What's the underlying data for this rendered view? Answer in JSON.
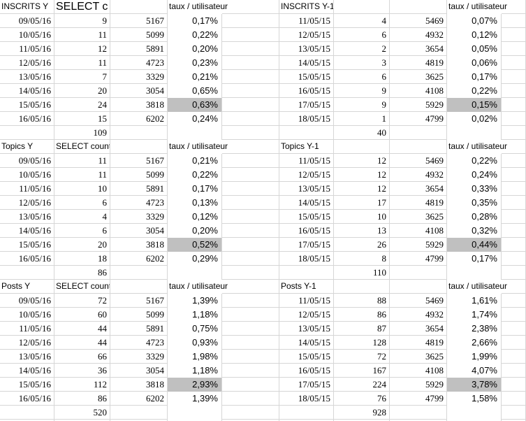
{
  "sheet": {
    "grid_color": "#d6d6d6",
    "highlight_color": "#c0c0c0",
    "text_color": "#000000"
  },
  "sections": [
    {
      "left": {
        "title": "INSCRITS Y",
        "select_label": "SELECT c",
        "rate_header": "taux / utilisateur",
        "rows": [
          {
            "date": "09/05/16",
            "count": "9",
            "users": "5167",
            "rate": "0,17%",
            "highlighted": false
          },
          {
            "date": "10/05/16",
            "count": "11",
            "users": "5099",
            "rate": "0,22%",
            "highlighted": false
          },
          {
            "date": "11/05/16",
            "count": "12",
            "users": "5891",
            "rate": "0,20%",
            "highlighted": false
          },
          {
            "date": "12/05/16",
            "count": "11",
            "users": "4723",
            "rate": "0,23%",
            "highlighted": false
          },
          {
            "date": "13/05/16",
            "count": "7",
            "users": "3329",
            "rate": "0,21%",
            "highlighted": false
          },
          {
            "date": "14/05/16",
            "count": "20",
            "users": "3054",
            "rate": "0,65%",
            "highlighted": false
          },
          {
            "date": "15/05/16",
            "count": "24",
            "users": "3818",
            "rate": "0,63%",
            "highlighted": true
          },
          {
            "date": "16/05/16",
            "count": "15",
            "users": "6202",
            "rate": "0,24%",
            "highlighted": false
          }
        ],
        "total": "109"
      },
      "right": {
        "title": "INSCRITS Y-1",
        "select_label": "",
        "rate_header": "taux / utilisateur",
        "rows": [
          {
            "date": "11/05/15",
            "count": "4",
            "users": "5469",
            "rate": "0,07%",
            "highlighted": false
          },
          {
            "date": "12/05/15",
            "count": "6",
            "users": "4932",
            "rate": "0,12%",
            "highlighted": false
          },
          {
            "date": "13/05/15",
            "count": "2",
            "users": "3654",
            "rate": "0,05%",
            "highlighted": false
          },
          {
            "date": "14/05/15",
            "count": "3",
            "users": "4819",
            "rate": "0,06%",
            "highlighted": false
          },
          {
            "date": "15/05/15",
            "count": "6",
            "users": "3625",
            "rate": "0,17%",
            "highlighted": false
          },
          {
            "date": "16/05/15",
            "count": "9",
            "users": "4108",
            "rate": "0,22%",
            "highlighted": false
          },
          {
            "date": "17/05/15",
            "count": "9",
            "users": "5929",
            "rate": "0,15%",
            "highlighted": true
          },
          {
            "date": "18/05/15",
            "count": "1",
            "users": "4799",
            "rate": "0,02%",
            "highlighted": false
          }
        ],
        "total": "40"
      }
    },
    {
      "left": {
        "title": "Topics Y",
        "select_label": "SELECT count",
        "rate_header": "taux / utilisateur",
        "rows": [
          {
            "date": "09/05/16",
            "count": "11",
            "users": "5167",
            "rate": "0,21%",
            "highlighted": false
          },
          {
            "date": "10/05/16",
            "count": "11",
            "users": "5099",
            "rate": "0,22%",
            "highlighted": false
          },
          {
            "date": "11/05/16",
            "count": "10",
            "users": "5891",
            "rate": "0,17%",
            "highlighted": false
          },
          {
            "date": "12/05/16",
            "count": "6",
            "users": "4723",
            "rate": "0,13%",
            "highlighted": false
          },
          {
            "date": "13/05/16",
            "count": "4",
            "users": "3329",
            "rate": "0,12%",
            "highlighted": false
          },
          {
            "date": "14/05/16",
            "count": "6",
            "users": "3054",
            "rate": "0,20%",
            "highlighted": false
          },
          {
            "date": "15/05/16",
            "count": "20",
            "users": "3818",
            "rate": "0,52%",
            "highlighted": true
          },
          {
            "date": "16/05/16",
            "count": "18",
            "users": "6202",
            "rate": "0,29%",
            "highlighted": false
          }
        ],
        "total": "86"
      },
      "right": {
        "title": "Topics Y-1",
        "select_label": "",
        "rate_header": "taux / utilisateur",
        "rows": [
          {
            "date": "11/05/15",
            "count": "12",
            "users": "5469",
            "rate": "0,22%",
            "highlighted": false
          },
          {
            "date": "12/05/15",
            "count": "12",
            "users": "4932",
            "rate": "0,24%",
            "highlighted": false
          },
          {
            "date": "13/05/15",
            "count": "12",
            "users": "3654",
            "rate": "0,33%",
            "highlighted": false
          },
          {
            "date": "14/05/15",
            "count": "17",
            "users": "4819",
            "rate": "0,35%",
            "highlighted": false
          },
          {
            "date": "15/05/15",
            "count": "10",
            "users": "3625",
            "rate": "0,28%",
            "highlighted": false
          },
          {
            "date": "16/05/15",
            "count": "13",
            "users": "4108",
            "rate": "0,32%",
            "highlighted": false
          },
          {
            "date": "17/05/15",
            "count": "26",
            "users": "5929",
            "rate": "0,44%",
            "highlighted": true
          },
          {
            "date": "18/05/15",
            "count": "8",
            "users": "4799",
            "rate": "0,17%",
            "highlighted": false
          }
        ],
        "total": "110"
      }
    },
    {
      "left": {
        "title": "Posts Y",
        "select_label": "SELECT count",
        "rate_header": "taux / utilisateur",
        "rows": [
          {
            "date": "09/05/16",
            "count": "72",
            "users": "5167",
            "rate": "1,39%",
            "highlighted": false
          },
          {
            "date": "10/05/16",
            "count": "60",
            "users": "5099",
            "rate": "1,18%",
            "highlighted": false
          },
          {
            "date": "11/05/16",
            "count": "44",
            "users": "5891",
            "rate": "0,75%",
            "highlighted": false
          },
          {
            "date": "12/05/16",
            "count": "44",
            "users": "4723",
            "rate": "0,93%",
            "highlighted": false
          },
          {
            "date": "13/05/16",
            "count": "66",
            "users": "3329",
            "rate": "1,98%",
            "highlighted": false
          },
          {
            "date": "14/05/16",
            "count": "36",
            "users": "3054",
            "rate": "1,18%",
            "highlighted": false
          },
          {
            "date": "15/05/16",
            "count": "112",
            "users": "3818",
            "rate": "2,93%",
            "highlighted": true
          },
          {
            "date": "16/05/16",
            "count": "86",
            "users": "6202",
            "rate": "1,39%",
            "highlighted": false
          }
        ],
        "total": "520"
      },
      "right": {
        "title": "Posts Y-1",
        "select_label": "",
        "rate_header": "taux / utilisateur",
        "rows": [
          {
            "date": "11/05/15",
            "count": "88",
            "users": "5469",
            "rate": "1,61%",
            "highlighted": false
          },
          {
            "date": "12/05/15",
            "count": "86",
            "users": "4932",
            "rate": "1,74%",
            "highlighted": false
          },
          {
            "date": "13/05/15",
            "count": "87",
            "users": "3654",
            "rate": "2,38%",
            "highlighted": false
          },
          {
            "date": "14/05/15",
            "count": "128",
            "users": "4819",
            "rate": "2,66%",
            "highlighted": false
          },
          {
            "date": "15/05/15",
            "count": "72",
            "users": "3625",
            "rate": "1,99%",
            "highlighted": false
          },
          {
            "date": "16/05/15",
            "count": "167",
            "users": "4108",
            "rate": "4,07%",
            "highlighted": false
          },
          {
            "date": "17/05/15",
            "count": "224",
            "users": "5929",
            "rate": "3,78%",
            "highlighted": true
          },
          {
            "date": "18/05/15",
            "count": "76",
            "users": "4799",
            "rate": "1,58%",
            "highlighted": false
          }
        ],
        "total": "928"
      }
    }
  ]
}
